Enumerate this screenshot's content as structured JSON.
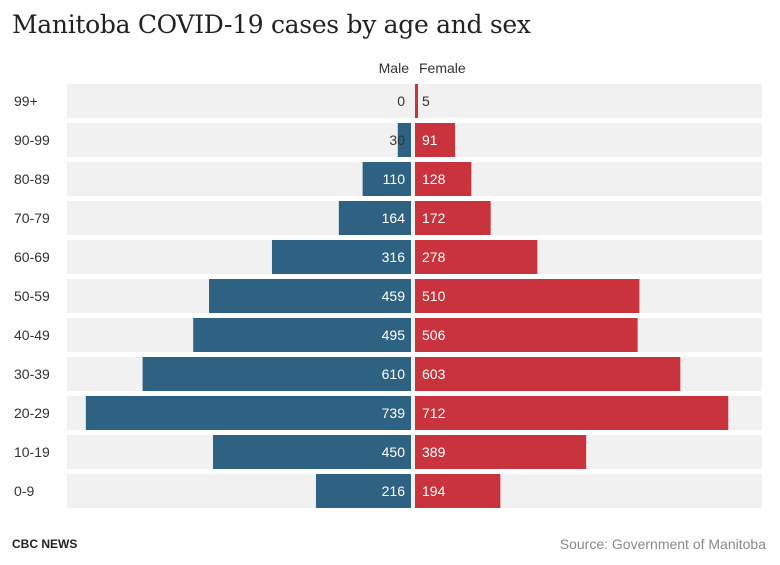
{
  "title": "Manitoba COVID-19 cases by age and sex",
  "footer": {
    "brand": "CBC NEWS",
    "source": "Source: Government of Manitoba"
  },
  "colors": {
    "male": "#2e6283",
    "female": "#c9333d",
    "row_bg": "#f1f1f1",
    "label_text": "#333333"
  },
  "chart_data": {
    "type": "bar",
    "orientation": "horizontal-population-pyramid",
    "title": "Manitoba COVID-19 cases by age and sex",
    "categories": [
      "99+",
      "90-99",
      "80-89",
      "70-79",
      "60-69",
      "50-59",
      "40-49",
      "30-39",
      "20-29",
      "10-19",
      "0-9"
    ],
    "series": [
      {
        "name": "Male",
        "values": [
          0,
          30,
          110,
          164,
          316,
          459,
          495,
          610,
          739,
          450,
          216
        ]
      },
      {
        "name": "Female",
        "values": [
          5,
          91,
          128,
          172,
          278,
          510,
          506,
          603,
          712,
          389,
          194
        ]
      }
    ],
    "grid": false
  }
}
